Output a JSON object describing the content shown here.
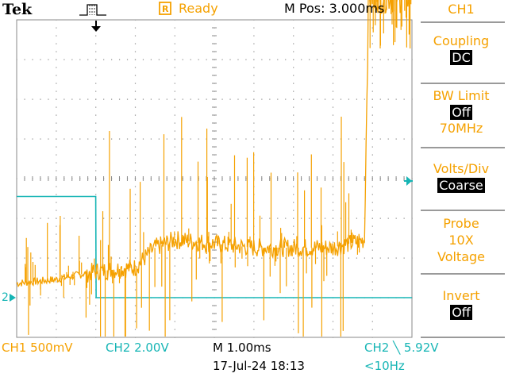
{
  "header": {
    "brand": "Tek",
    "status_label": "Ready",
    "position": "M Pos: 3.000ms"
  },
  "menu": {
    "channel": "CH1",
    "coupling": {
      "label": "Coupling",
      "value": "DC"
    },
    "bw_limit": {
      "label": "BW Limit",
      "value": "Off",
      "sub": "70MHz"
    },
    "volts_div": {
      "label": "Volts/Div",
      "value": "Coarse"
    },
    "probe": {
      "label": "Probe",
      "line1": "10X",
      "line2": "Voltage"
    },
    "invert": {
      "label": "Invert",
      "value": "Off"
    }
  },
  "footer": {
    "ch1_scale": "CH1  500mV",
    "ch2_scale": "CH2  2.00V",
    "time_scale": "M 1.00ms",
    "datetime": "17-Jul-24 18:13",
    "trigger": "CH2 ╲ 5.92V",
    "frequency": "<10Hz"
  },
  "markers": {
    "ch2_ground": "2"
  },
  "colors": {
    "ch1": "#f5a100",
    "ch2": "#16b5b5",
    "grid": "#8a8a8a",
    "menu_separator": "#9a9a9a"
  },
  "chart_data": {
    "type": "line",
    "x_unit": "ms",
    "xlim": [
      -2.0,
      8.0
    ],
    "series": [
      {
        "name": "CH1",
        "y_unit": "V",
        "x": [
          -2.0,
          -1.0,
          0.0,
          1.0,
          1.5,
          2.0,
          3.0,
          4.0,
          5.0,
          6.0,
          6.8,
          6.9,
          7.0,
          8.0
        ],
        "values": [
          0.05,
          0.1,
          0.2,
          0.25,
          0.5,
          0.6,
          0.55,
          0.5,
          0.5,
          0.5,
          0.6,
          3.65,
          3.7,
          3.7
        ]
      },
      {
        "name": "CH2",
        "y_unit": "V",
        "x": [
          -2.0,
          0.0,
          0.01,
          8.0
        ],
        "values": [
          5.1,
          5.1,
          0.0,
          0.0
        ]
      }
    ]
  }
}
